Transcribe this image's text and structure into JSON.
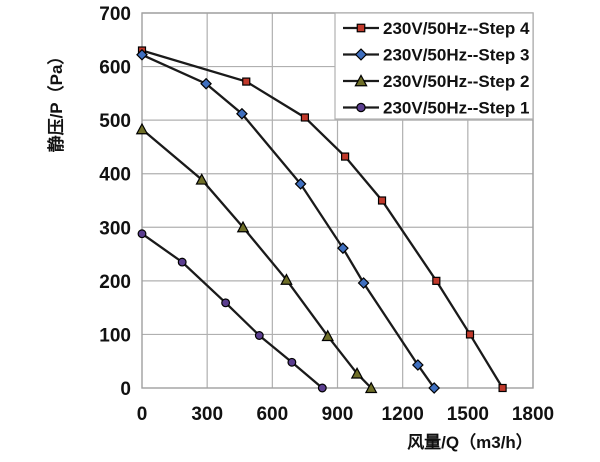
{
  "chart_data": {
    "type": "line",
    "title": "",
    "xlabel": "风量/Q（m3/h）",
    "ylabel": "静压/P（Pa）",
    "xlim": [
      0,
      1800
    ],
    "ylim": [
      0,
      700
    ],
    "xticks": [
      0,
      300,
      600,
      900,
      1200,
      1500,
      1800
    ],
    "yticks": [
      0,
      100,
      200,
      300,
      400,
      500,
      600,
      700
    ],
    "grid": true,
    "legend_position": "top-right",
    "colors": {
      "line": "#1a1a1a",
      "grid": "#b0b0b0",
      "border": "#a0a0a0",
      "text": "#111111",
      "background": "#ffffff",
      "marker_outline": "#000000"
    },
    "series": [
      {
        "name": "230V/50Hz--Step 4",
        "marker": "square",
        "marker_color": "#c0392b",
        "points": [
          [
            0,
            630
          ],
          [
            480,
            572
          ],
          [
            750,
            505
          ],
          [
            935,
            432
          ],
          [
            1105,
            350
          ],
          [
            1355,
            200
          ],
          [
            1510,
            100
          ],
          [
            1660,
            0
          ]
        ]
      },
      {
        "name": "230V/50Hz--Step 3",
        "marker": "diamond",
        "marker_color": "#3f6fbf",
        "points": [
          [
            0,
            622
          ],
          [
            295,
            568
          ],
          [
            460,
            512
          ],
          [
            730,
            381
          ],
          [
            925,
            261
          ],
          [
            1020,
            196
          ],
          [
            1270,
            43
          ],
          [
            1345,
            0
          ]
        ]
      },
      {
        "name": "230V/50Hz--Step 2",
        "marker": "triangle",
        "marker_color": "#6e6e28",
        "points": [
          [
            0,
            483
          ],
          [
            275,
            389
          ],
          [
            465,
            300
          ],
          [
            665,
            202
          ],
          [
            855,
            97
          ],
          [
            990,
            27
          ],
          [
            1055,
            0
          ]
        ]
      },
      {
        "name": "230V/50Hz--Step 1",
        "marker": "circle",
        "marker_color": "#5b3e8f",
        "points": [
          [
            0,
            288
          ],
          [
            185,
            235
          ],
          [
            385,
            159
          ],
          [
            540,
            98
          ],
          [
            690,
            48
          ],
          [
            830,
            0
          ]
        ]
      }
    ]
  }
}
